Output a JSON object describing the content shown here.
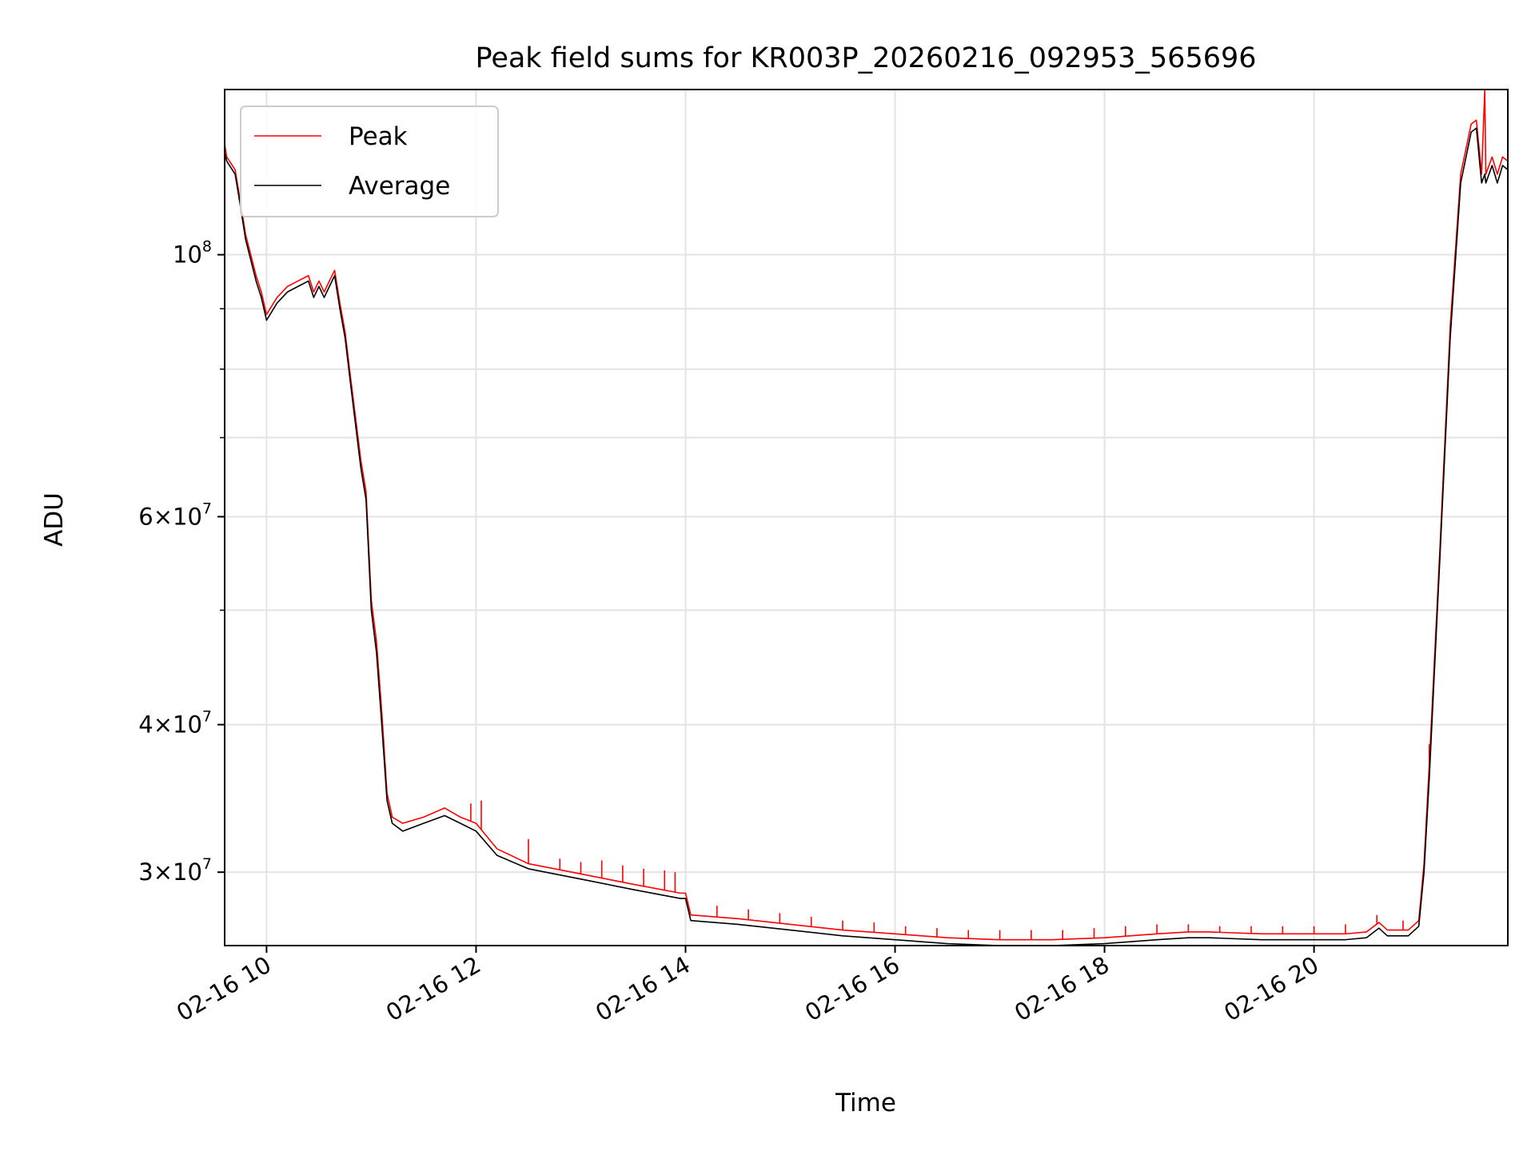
{
  "chart_data": {
    "type": "line",
    "title": "Peak field sums for KR003P_20260216_092953_565696",
    "xlabel": "Time",
    "ylabel": "ADU",
    "yscale": "log",
    "xlim": [
      9.6,
      21.85
    ],
    "ylim": [
      26000000.0,
      138000000.0
    ],
    "x_ticks": [
      {
        "value": 10,
        "label": "02-16 10"
      },
      {
        "value": 12,
        "label": "02-16 12"
      },
      {
        "value": 14,
        "label": "02-16 14"
      },
      {
        "value": 16,
        "label": "02-16 16"
      },
      {
        "value": 18,
        "label": "02-16 18"
      },
      {
        "value": 20,
        "label": "02-16 20"
      }
    ],
    "y_ticks": [
      {
        "value": 100000000.0,
        "mant": "",
        "exp": "8"
      },
      {
        "value": 60000000.0,
        "mant": "6",
        "exp": "7"
      },
      {
        "value": 40000000.0,
        "mant": "4",
        "exp": "7"
      },
      {
        "value": 30000000.0,
        "mant": "3",
        "exp": "7"
      }
    ],
    "y_minor_ticks": [
      30000000.0,
      40000000.0,
      50000000.0,
      60000000.0,
      70000000.0,
      80000000.0,
      90000000.0,
      100000000.0
    ],
    "grid": true,
    "legend": {
      "position": "upper-left",
      "entries": [
        {
          "label": "Peak",
          "color": "#ff0000"
        },
        {
          "label": "Average",
          "color": "#000000"
        }
      ]
    },
    "series": [
      {
        "name": "Average",
        "color": "#000000",
        "x": [
          9.6,
          9.62,
          9.7,
          9.75,
          9.8,
          9.9,
          9.95,
          10.0,
          10.1,
          10.2,
          10.3,
          10.4,
          10.45,
          10.5,
          10.55,
          10.6,
          10.65,
          10.7,
          10.75,
          10.8,
          10.9,
          10.95,
          11.0,
          11.05,
          11.1,
          11.15,
          11.2,
          11.3,
          11.5,
          11.7,
          11.85,
          12.0,
          12.2,
          12.5,
          13.0,
          13.5,
          13.95,
          14.0,
          14.05,
          14.5,
          15.0,
          15.5,
          16.0,
          16.5,
          17.0,
          17.5,
          18.0,
          18.5,
          18.8,
          19.0,
          19.5,
          20.0,
          20.3,
          20.5,
          20.62,
          20.7,
          20.9,
          21.0,
          21.05,
          21.1,
          21.2,
          21.3,
          21.4,
          21.5,
          21.55,
          21.6,
          21.63,
          21.64,
          21.7,
          21.75,
          21.8,
          21.85
        ],
        "values": [
          122000000,
          120000000,
          117000000,
          110000000,
          103000000,
          95000000,
          92000000,
          88000000,
          91000000,
          93000000,
          94000000,
          95000000,
          92000000,
          94000000,
          92000000,
          94000000,
          96000000,
          90000000,
          85000000,
          78000000,
          66000000,
          62000000,
          50000000,
          46000000,
          40000000,
          34500000,
          33000000,
          32500000,
          33000000,
          33500000,
          33000000,
          32500000,
          31000000,
          30200000,
          29600000,
          29000000,
          28500000,
          28500000,
          27300000,
          27100000,
          26800000,
          26500000,
          26300000,
          26100000,
          26000000,
          26000000,
          26100000,
          26300000,
          26400000,
          26400000,
          26300000,
          26300000,
          26300000,
          26400000,
          26900000,
          26500000,
          26500000,
          27000000,
          30000000,
          36000000,
          55000000,
          85000000,
          115000000,
          127000000,
          128000000,
          115000000,
          117000000,
          115000000,
          119000000,
          115000000,
          119000000,
          118000000
        ]
      },
      {
        "name": "Peak",
        "color": "#ff0000",
        "x": [
          9.6,
          9.62,
          9.7,
          9.75,
          9.8,
          9.9,
          9.95,
          10.0,
          10.1,
          10.2,
          10.3,
          10.4,
          10.45,
          10.5,
          10.55,
          10.6,
          10.65,
          10.7,
          10.75,
          10.8,
          10.9,
          10.95,
          11.0,
          11.05,
          11.1,
          11.15,
          11.2,
          11.3,
          11.5,
          11.7,
          11.85,
          12.0,
          12.2,
          12.5,
          13.0,
          13.5,
          13.95,
          14.0,
          14.05,
          14.5,
          15.0,
          15.5,
          16.0,
          16.5,
          17.0,
          17.5,
          18.0,
          18.5,
          18.8,
          19.0,
          19.5,
          20.0,
          20.3,
          20.5,
          20.62,
          20.7,
          20.9,
          21.0,
          21.05,
          21.1,
          21.2,
          21.3,
          21.4,
          21.5,
          21.55,
          21.6,
          21.63,
          21.64,
          21.7,
          21.75,
          21.8,
          21.85
        ],
        "values": [
          124000000,
          121000000,
          118000000,
          111000000,
          104000000,
          96000000,
          93000000,
          89000000,
          92000000,
          94000000,
          95000000,
          96000000,
          93000000,
          95000000,
          93000000,
          95000000,
          97000000,
          91000000,
          86000000,
          79000000,
          67000000,
          63000000,
          51000000,
          47000000,
          41000000,
          35000000,
          33400000,
          33000000,
          33400000,
          34000000,
          33400000,
          33000000,
          31400000,
          30500000,
          29900000,
          29300000,
          28800000,
          28800000,
          27600000,
          27400000,
          27100000,
          26800000,
          26600000,
          26400000,
          26300000,
          26300000,
          26400000,
          26600000,
          26700000,
          26700000,
          26600000,
          26600000,
          26600000,
          26700000,
          27200000,
          26800000,
          26800000,
          27300000,
          30500000,
          37000000,
          56000000,
          87000000,
          117000000,
          129000000,
          130000000,
          117000000,
          138000000,
          117000000,
          121000000,
          117000000,
          121000000,
          120000000
        ]
      }
    ],
    "peak_spikes": [
      [
        11.95,
        34300000
      ],
      [
        12.05,
        34500000
      ],
      [
        12.5,
        32000000
      ],
      [
        12.8,
        30800000
      ],
      [
        13.0,
        30600000
      ],
      [
        13.2,
        30700000
      ],
      [
        13.4,
        30400000
      ],
      [
        13.6,
        30200000
      ],
      [
        13.8,
        30100000
      ],
      [
        13.9,
        30000000
      ],
      [
        14.3,
        28100000
      ],
      [
        14.6,
        27900000
      ],
      [
        14.9,
        27700000
      ],
      [
        15.2,
        27500000
      ],
      [
        15.5,
        27300000
      ],
      [
        15.8,
        27200000
      ],
      [
        16.1,
        27000000
      ],
      [
        16.4,
        26900000
      ],
      [
        16.7,
        26800000
      ],
      [
        17.0,
        26800000
      ],
      [
        17.3,
        26800000
      ],
      [
        17.6,
        26800000
      ],
      [
        17.9,
        26900000
      ],
      [
        18.2,
        27000000
      ],
      [
        18.5,
        27100000
      ],
      [
        18.8,
        27100000
      ],
      [
        19.1,
        27000000
      ],
      [
        19.4,
        27000000
      ],
      [
        19.7,
        27000000
      ],
      [
        20.0,
        27000000
      ],
      [
        20.3,
        27100000
      ],
      [
        20.6,
        27600000
      ],
      [
        20.85,
        27300000
      ],
      [
        21.1,
        38500000
      ],
      [
        21.63,
        138000000
      ]
    ]
  }
}
